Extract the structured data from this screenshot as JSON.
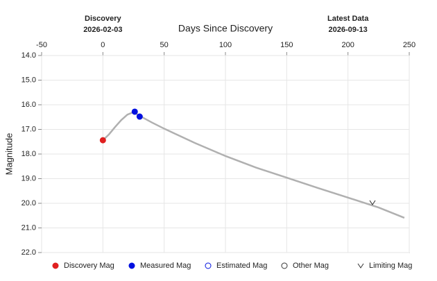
{
  "chart_data": {
    "type": "lightcurve",
    "x_label": "Days Since Discovery",
    "y_label": "Magnitude",
    "annotations": [
      {
        "text": "Discovery",
        "date": "2026-02-03",
        "x": 0
      },
      {
        "text": "Latest Data",
        "date": "2026-09-13",
        "x": 200
      }
    ],
    "xlim": [
      -50,
      250
    ],
    "xticks": [
      -50,
      0,
      50,
      100,
      150,
      200,
      250
    ],
    "ylim": [
      14,
      22
    ],
    "y_inverted": true,
    "yticks": [
      {
        "value": 14,
        "label": "14.0"
      },
      {
        "value": 15,
        "label": "15.0"
      },
      {
        "value": 16,
        "label": "16.0"
      },
      {
        "value": 17,
        "label": "17.0"
      },
      {
        "value": 18,
        "label": "18.0"
      },
      {
        "value": 19,
        "label": "19.0"
      },
      {
        "value": 20,
        "label": "20.0"
      },
      {
        "value": 21,
        "label": "21.0"
      },
      {
        "value": 22,
        "label": "22.0"
      }
    ],
    "grid": true,
    "model": {
      "color": "#b0b0b0",
      "x": [
        0,
        5,
        10,
        15,
        20,
        25,
        30,
        40,
        50,
        75,
        100,
        125,
        150,
        175,
        200,
        225,
        246
      ],
      "values": [
        17.44,
        17.2,
        16.9,
        16.62,
        16.4,
        16.3,
        16.45,
        16.72,
        16.97,
        17.55,
        18.08,
        18.55,
        18.96,
        19.37,
        19.77,
        20.17,
        20.59
      ]
    },
    "series": [
      {
        "name": "Discovery Mag",
        "color": "#e02020",
        "marker": "filled",
        "x": [
          0
        ],
        "values": [
          17.44
        ]
      },
      {
        "name": "Measured Mag",
        "color": "#0010e0",
        "marker": "filled",
        "x": [
          26,
          30
        ],
        "values": [
          16.28,
          16.48
        ]
      },
      {
        "name": "Estimated Mag",
        "color": "#0010e0",
        "marker": "hollow",
        "x": [],
        "values": []
      },
      {
        "name": "Other Mag",
        "color": "#333333",
        "marker": "hollow",
        "x": [],
        "values": []
      },
      {
        "name": "Limiting Mag",
        "color": "#333333",
        "marker": "v",
        "x": [
          220
        ],
        "values": [
          19.97
        ]
      }
    ]
  }
}
